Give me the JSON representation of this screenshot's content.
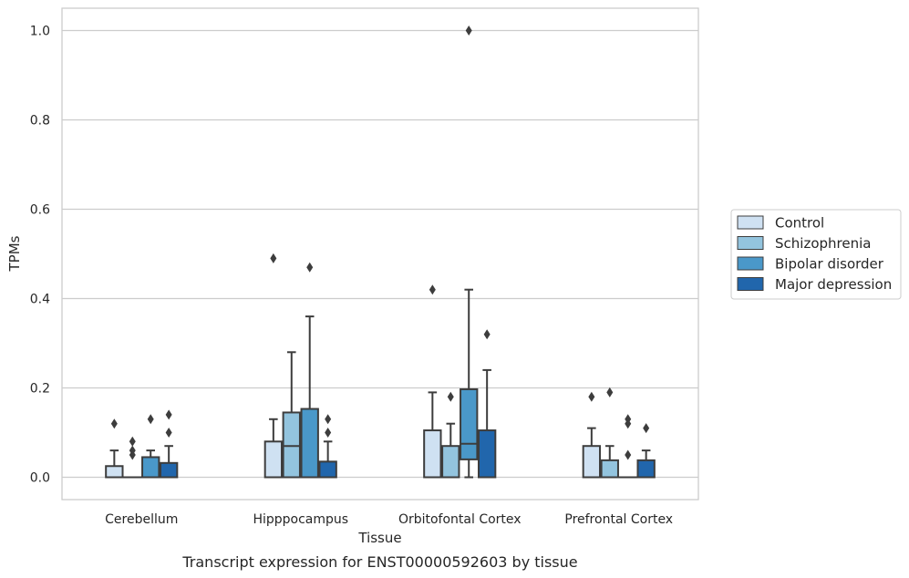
{
  "chart_data": {
    "type": "boxplot",
    "caption": "Transcript expression for ENST00000592603 by tissue",
    "xlabel": "Tissue",
    "ylabel": "TPMs",
    "ylim": [
      -0.05,
      1.05
    ],
    "yticks": [
      0.0,
      0.2,
      0.4,
      0.6,
      0.8,
      1.0
    ],
    "ytick_labels": [
      "0.0",
      "0.2",
      "0.4",
      "0.6",
      "0.8",
      "1.0"
    ],
    "grid": "horizontal",
    "legend_position": "right",
    "categories": [
      "Cerebellum",
      "Hipppocampus",
      "Orbitofontal Cortex",
      "Prefrontal Cortex"
    ],
    "series": [
      {
        "name": "Control",
        "color": "#cfe1f2",
        "boxes": [
          {
            "q1": 0.0,
            "median": 0.0,
            "q3": 0.025,
            "whislo": 0.0,
            "whishi": 0.06,
            "fliers": [
              0.12
            ]
          },
          {
            "q1": 0.0,
            "median": 0.0,
            "q3": 0.08,
            "whislo": 0.0,
            "whishi": 0.13,
            "fliers": [
              0.49
            ]
          },
          {
            "q1": 0.0,
            "median": 0.0,
            "q3": 0.105,
            "whislo": 0.0,
            "whishi": 0.19,
            "fliers": [
              0.42
            ]
          },
          {
            "q1": 0.0,
            "median": 0.0,
            "q3": 0.07,
            "whislo": 0.0,
            "whishi": 0.11,
            "fliers": [
              0.18
            ]
          }
        ]
      },
      {
        "name": "Schizophrenia",
        "color": "#93c4de",
        "boxes": [
          {
            "q1": 0.0,
            "median": 0.0,
            "q3": 0.0,
            "whislo": 0.0,
            "whishi": 0.0,
            "fliers": [
              0.05,
              0.06,
              0.08
            ]
          },
          {
            "q1": 0.0,
            "median": 0.07,
            "q3": 0.145,
            "whislo": 0.0,
            "whishi": 0.28,
            "fliers": []
          },
          {
            "q1": 0.0,
            "median": 0.0,
            "q3": 0.07,
            "whislo": 0.0,
            "whishi": 0.12,
            "fliers": [
              0.18
            ]
          },
          {
            "q1": 0.0,
            "median": 0.0,
            "q3": 0.038,
            "whislo": 0.0,
            "whishi": 0.07,
            "fliers": [
              0.19
            ]
          }
        ]
      },
      {
        "name": "Bipolar disorder",
        "color": "#4a98c9",
        "boxes": [
          {
            "q1": 0.0,
            "median": 0.0,
            "q3": 0.045,
            "whislo": 0.0,
            "whishi": 0.06,
            "fliers": [
              0.13
            ]
          },
          {
            "q1": 0.0,
            "median": 0.0,
            "q3": 0.153,
            "whislo": 0.0,
            "whishi": 0.36,
            "fliers": [
              0.47
            ]
          },
          {
            "q1": 0.04,
            "median": 0.075,
            "q3": 0.197,
            "whislo": 0.0,
            "whishi": 0.42,
            "fliers": [
              1.0
            ]
          },
          {
            "q1": 0.0,
            "median": 0.0,
            "q3": 0.0,
            "whislo": 0.0,
            "whishi": 0.0,
            "fliers": [
              0.05,
              0.12,
              0.13
            ]
          }
        ]
      },
      {
        "name": "Major depression",
        "color": "#2166ac",
        "boxes": [
          {
            "q1": 0.0,
            "median": 0.0,
            "q3": 0.032,
            "whislo": 0.0,
            "whishi": 0.07,
            "fliers": [
              0.1,
              0.14
            ]
          },
          {
            "q1": 0.0,
            "median": 0.0,
            "q3": 0.035,
            "whislo": 0.0,
            "whishi": 0.08,
            "fliers": [
              0.1,
              0.13
            ]
          },
          {
            "q1": 0.0,
            "median": 0.0,
            "q3": 0.105,
            "whislo": 0.0,
            "whishi": 0.24,
            "fliers": [
              0.32
            ]
          },
          {
            "q1": 0.0,
            "median": 0.0,
            "q3": 0.038,
            "whislo": 0.0,
            "whishi": 0.06,
            "fliers": [
              0.11
            ]
          }
        ]
      }
    ]
  }
}
